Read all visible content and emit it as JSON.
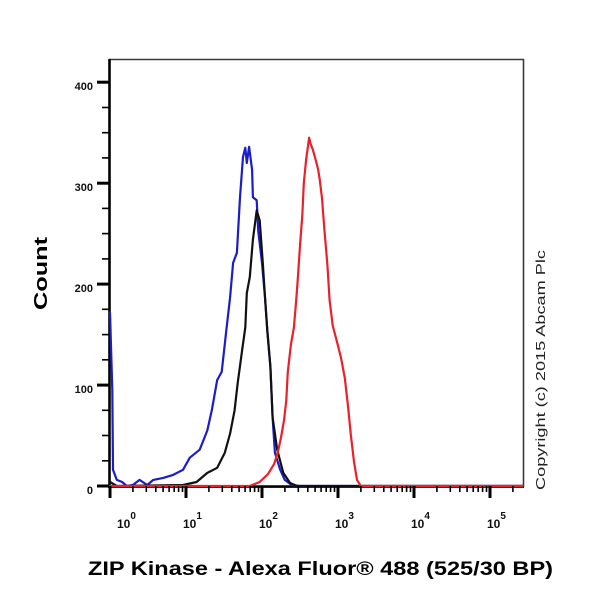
{
  "figure": {
    "y_axis_title": "Count",
    "x_axis_title": "ZIP Kinase - Alexa Fluor® 488 (525/30 BP)",
    "copyright": "Copyright (c) 2015 Abcam Plc"
  },
  "colors": {
    "blue_series": "#1c1cc8",
    "black_series": "#111111",
    "red_series": "#e8212b",
    "axis": "#000000",
    "frame": "#3a3a3a",
    "background": "#ffffff"
  },
  "axes": {
    "y": {
      "minor_step": 25,
      "ticks": [
        {
          "value": 0,
          "label": "0"
        },
        {
          "value": 100,
          "label": "100"
        },
        {
          "value": 200,
          "label": "200"
        },
        {
          "value": 300,
          "label": "300"
        },
        {
          "value": 400,
          "label": "400"
        }
      ]
    },
    "x": {
      "ticks": [
        {
          "log10": 0,
          "base": "10",
          "sup": "0"
        },
        {
          "log10": 1,
          "base": "10",
          "sup": "1"
        },
        {
          "log10": 2,
          "base": "10",
          "sup": "2"
        },
        {
          "log10": 3,
          "base": "10",
          "sup": "3"
        },
        {
          "log10": 4,
          "base": "10",
          "sup": "4"
        },
        {
          "log10": 5,
          "base": "10",
          "sup": "5"
        }
      ]
    }
  },
  "chart_data": {
    "type": "line",
    "subtype": "flow cytometry histogram overlay",
    "title": "",
    "xlabel": "ZIP Kinase - Alexa Fluor® 488 (525/30 BP)",
    "ylabel": "Count",
    "x_scale": "log10",
    "xlim_log10": [
      0,
      5.434
    ],
    "ylim": [
      0,
      423
    ],
    "x_tick_labels": [
      "10^0",
      "10^1",
      "10^2",
      "10^3",
      "10^4",
      "10^5"
    ],
    "y_tick_labels": [
      "0",
      "100",
      "200",
      "300",
      "400"
    ],
    "grid": false,
    "legend": null,
    "annotations": [
      "Copyright (c) 2015 Abcam Plc"
    ],
    "series": [
      {
        "name": "blue",
        "color": "#1c1cc8",
        "peak_log10": 1.83,
        "peak_count": 336,
        "x_log10": [
          0.0,
          0.03,
          0.04,
          0.09,
          0.16,
          0.22,
          0.3,
          0.39,
          0.49,
          0.57,
          0.7,
          0.83,
          0.96,
          1.05,
          1.18,
          1.28,
          1.34,
          1.41,
          1.47,
          1.53,
          1.58,
          1.62,
          1.67,
          1.71,
          1.75,
          1.78,
          1.8,
          1.83,
          1.87,
          1.88,
          1.93,
          1.95,
          2.0,
          2.04,
          2.07,
          2.11,
          2.14,
          2.17,
          2.24,
          2.3,
          2.39,
          2.5,
          5.43
        ],
        "counts": [
          172,
          95,
          16,
          6,
          4,
          0,
          1,
          6,
          1,
          6,
          8,
          11,
          16,
          28,
          36,
          55,
          75,
          105,
          113,
          154,
          187,
          221,
          231,
          286,
          326,
          335,
          320,
          336,
          313,
          286,
          283,
          253,
          221,
          187,
          154,
          118,
          68,
          33,
          16,
          6,
          1,
          0,
          0
        ]
      },
      {
        "name": "black",
        "color": "#111111",
        "peak_log10": 1.93,
        "peak_count": 273,
        "x_log10": [
          0.0,
          0.09,
          0.96,
          1.14,
          1.28,
          1.41,
          1.51,
          1.58,
          1.64,
          1.68,
          1.74,
          1.78,
          1.8,
          1.84,
          1.88,
          1.93,
          1.97,
          2.01,
          2.04,
          2.07,
          2.11,
          2.14,
          2.2,
          2.28,
          2.37,
          2.46,
          5.43
        ],
        "counts": [
          4,
          0,
          1,
          4,
          13,
          18,
          33,
          52,
          75,
          102,
          135,
          157,
          191,
          207,
          244,
          273,
          263,
          221,
          187,
          154,
          118,
          68,
          36,
          13,
          3,
          0,
          0
        ]
      },
      {
        "name": "red",
        "color": "#e8212b",
        "peak_log10": 2.62,
        "peak_count": 345,
        "x_log10": [
          0.0,
          1.84,
          1.97,
          2.08,
          2.16,
          2.21,
          2.25,
          2.29,
          2.32,
          2.34,
          2.38,
          2.42,
          2.45,
          2.47,
          2.5,
          2.53,
          2.55,
          2.58,
          2.61,
          2.62,
          2.64,
          2.67,
          2.71,
          2.74,
          2.76,
          2.79,
          2.82,
          2.86,
          2.89,
          2.93,
          2.99,
          3.04,
          3.09,
          3.13,
          3.17,
          3.21,
          3.25,
          3.3,
          5.43
        ],
        "counts": [
          0,
          0,
          4,
          12,
          22,
          34,
          48,
          65,
          85,
          113,
          140,
          157,
          184,
          204,
          238,
          268,
          300,
          323,
          340,
          345,
          339,
          333,
          322,
          313,
          303,
          285,
          255,
          219,
          184,
          159,
          142,
          127,
          107,
          80,
          50,
          24,
          6,
          0,
          0
        ]
      }
    ]
  }
}
